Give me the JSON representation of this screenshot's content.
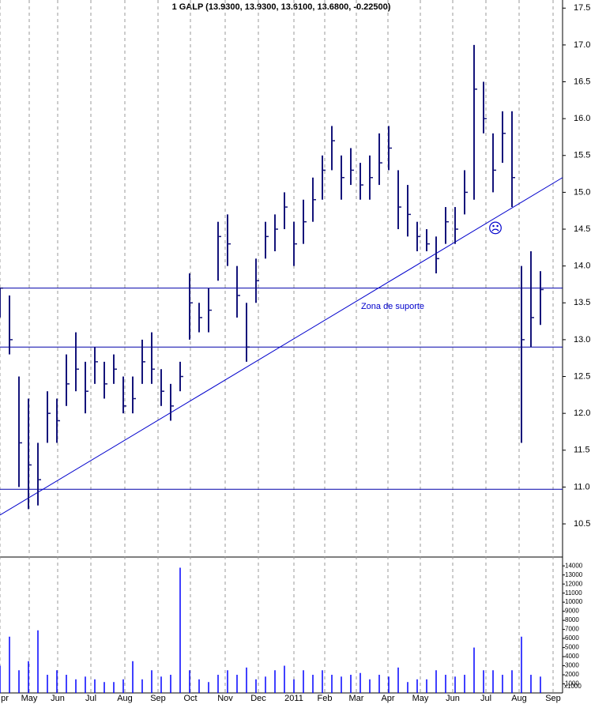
{
  "chart_data": {
    "type": "ohlc",
    "title": "1 GALP (13.9300, 13.9300, 13.6100, 13.6800, -0.22500)",
    "color": "#14147a",
    "x": [
      0,
      6,
      12,
      18,
      24,
      30,
      36,
      42,
      48,
      54,
      60,
      66,
      72,
      78,
      84,
      90,
      96,
      102,
      108,
      114,
      120,
      126,
      132,
      138,
      144,
      150,
      156,
      162,
      168,
      174,
      180,
      186,
      192,
      198,
      204,
      210,
      216,
      222,
      228,
      234,
      240,
      246,
      252,
      258,
      264,
      270,
      276,
      282,
      288,
      294,
      300,
      306,
      312,
      318,
      324,
      330,
      336,
      342
    ],
    "high": [
      13.7,
      13.6,
      12.5,
      12.2,
      11.6,
      12.3,
      12.2,
      12.8,
      13.1,
      12.7,
      12.9,
      12.7,
      12.8,
      12.5,
      12.5,
      13.0,
      13.1,
      12.6,
      12.4,
      12.7,
      13.9,
      13.5,
      13.7,
      14.6,
      14.7,
      14.0,
      13.5,
      14.1,
      14.6,
      14.7,
      15.0,
      14.6,
      14.9,
      15.2,
      15.5,
      15.9,
      15.5,
      15.6,
      15.4,
      15.5,
      15.8,
      15.9,
      15.3,
      15.1,
      14.6,
      14.5,
      14.4,
      14.8,
      14.8,
      15.3,
      17.0,
      16.5,
      15.8,
      16.1,
      16.1,
      14.0,
      14.2,
      13.93
    ],
    "low": [
      13.3,
      12.8,
      11.0,
      10.7,
      10.75,
      11.6,
      11.6,
      12.1,
      12.3,
      12.0,
      12.4,
      12.2,
      12.4,
      12.0,
      12.0,
      12.4,
      12.4,
      12.1,
      11.9,
      12.3,
      13.0,
      13.1,
      13.1,
      13.8,
      14.0,
      13.3,
      12.7,
      13.5,
      14.1,
      14.2,
      14.5,
      14.0,
      14.3,
      14.6,
      14.9,
      15.3,
      14.9,
      15.1,
      14.9,
      14.9,
      15.1,
      15.3,
      14.5,
      14.4,
      14.2,
      14.2,
      13.9,
      14.3,
      14.3,
      14.7,
      14.9,
      15.8,
      15.0,
      15.4,
      14.8,
      11.6,
      12.9,
      13.2
    ],
    "close": [
      13.7,
      13.0,
      11.6,
      11.3,
      11.1,
      12.0,
      11.9,
      12.4,
      12.6,
      12.3,
      12.7,
      12.4,
      12.6,
      12.1,
      12.2,
      12.7,
      12.6,
      12.3,
      12.1,
      12.5,
      13.5,
      13.3,
      13.4,
      14.4,
      14.3,
      13.6,
      12.9,
      13.8,
      14.4,
      14.5,
      14.8,
      14.3,
      14.6,
      14.9,
      15.3,
      15.7,
      15.2,
      15.3,
      15.1,
      15.2,
      15.4,
      15.6,
      14.8,
      14.7,
      14.4,
      14.3,
      14.1,
      14.6,
      14.5,
      15.0,
      16.4,
      16.0,
      15.3,
      15.8,
      15.2,
      13.0,
      13.3,
      13.68
    ],
    "xlim": [
      0,
      356
    ],
    "xticks": [
      {
        "value": 0,
        "label": "pr"
      },
      {
        "value": 18.5,
        "label": "May"
      },
      {
        "value": 36.5,
        "label": "Jun"
      },
      {
        "value": 57.5,
        "label": "Jul"
      },
      {
        "value": 79,
        "label": "Aug"
      },
      {
        "value": 100,
        "label": "Sep"
      },
      {
        "value": 120.5,
        "label": "Oct"
      },
      {
        "value": 142.5,
        "label": "Nov"
      },
      {
        "value": 163.5,
        "label": "Dec"
      },
      {
        "value": 186,
        "label": "2011"
      },
      {
        "value": 205.5,
        "label": "Feb"
      },
      {
        "value": 225.5,
        "label": "Mar"
      },
      {
        "value": 245.5,
        "label": "Apr"
      },
      {
        "value": 266,
        "label": "May"
      },
      {
        "value": 286.5,
        "label": "Jun"
      },
      {
        "value": 307.5,
        "label": "Jul"
      },
      {
        "value": 328.5,
        "label": "Aug"
      },
      {
        "value": 350,
        "label": "Sep"
      }
    ],
    "ylim": [
      10.05,
      17.61
    ],
    "yticks": [
      10.5,
      {
        "value": 11,
        "label": "11.0"
      },
      11.5,
      {
        "value": 12,
        "label": "12.0"
      },
      12.5,
      {
        "value": 13,
        "label": "13.0"
      },
      13.5,
      {
        "value": 14,
        "label": "14.0"
      },
      14.5,
      {
        "value": 15,
        "label": "15.0"
      },
      15.5,
      {
        "value": 16,
        "label": "16.0"
      },
      16.5,
      {
        "value": 17,
        "label": "17.0"
      },
      17.5
    ],
    "hlines": [
      13.7,
      12.9,
      10.97
    ],
    "trendline": {
      "x": [
        0,
        356
      ],
      "y": [
        10.62,
        15.2
      ]
    },
    "annotations": [
      {
        "text": "Zona de suporte",
        "x": 248.5,
        "y": 13.45
      },
      {
        "text": "☹",
        "x": 313.5,
        "y": 14.5
      }
    ],
    "volume": {
      "color": "#0000ff",
      "unit_label": "x1000",
      "values": [
        3000,
        6200,
        2500,
        3500,
        6900,
        2000,
        2500,
        2000,
        1500,
        1800,
        1500,
        1200,
        1200,
        1500,
        3500,
        1500,
        2500,
        1800,
        2000,
        13800,
        2500,
        1500,
        1200,
        2000,
        2500,
        2000,
        2800,
        1500,
        1800,
        2500,
        3000,
        1500,
        2500,
        2000,
        2500,
        2000,
        1800,
        2000,
        2200,
        1500,
        2000,
        1800,
        2800,
        1200,
        1500,
        1500,
        2500,
        2000,
        1800,
        2000,
        5000,
        2500,
        2500,
        2000,
        2500,
        6200,
        2000,
        1800
      ],
      "ylim": [
        0,
        14800
      ],
      "yticks": [
        1000,
        2000,
        3000,
        4000,
        5000,
        6000,
        7000,
        8000,
        9000,
        10000,
        11000,
        12000,
        13000,
        14000
      ]
    }
  }
}
